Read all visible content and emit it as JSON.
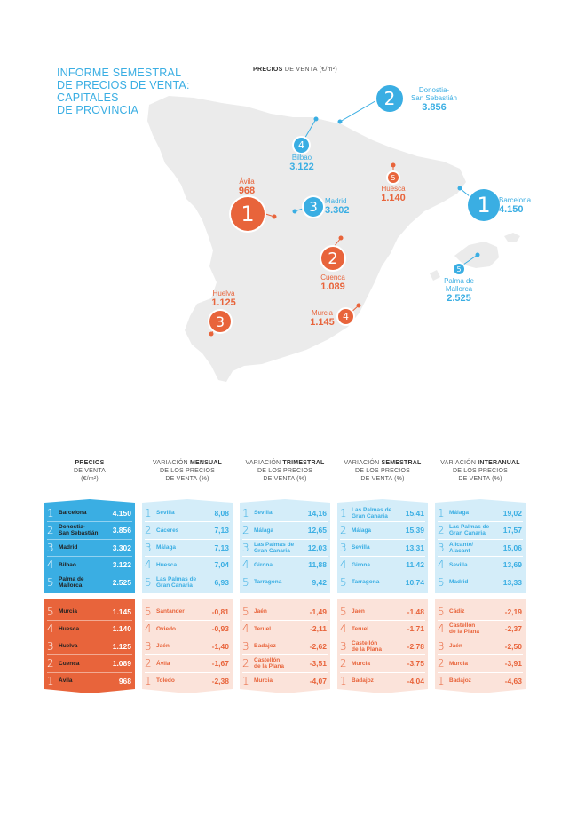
{
  "title": [
    "INFORME SEMESTRAL",
    "DE PRECIOS DE VENTA:",
    "CAPITALES",
    "DE PROVINCIA"
  ],
  "map_header": {
    "bold": "PRECIOS",
    "rest": " DE VENTA (€/m²)"
  },
  "colors": {
    "blue": "#3aaee3",
    "orange": "#e8643b",
    "light_blue": "#d4edf9",
    "light_orange": "#fbe3da",
    "land": "#ebebeb"
  },
  "map_pins": [
    {
      "rank": "2",
      "name": "Donostia-\nSan Sebastián",
      "value": "3.856",
      "color": "blue"
    },
    {
      "rank": "4",
      "name": "Bilbao",
      "value": "3.122",
      "color": "blue"
    },
    {
      "rank": "5",
      "name": "Huesca",
      "value": "1.140",
      "color": "orange"
    },
    {
      "rank": "1",
      "name": "Barcelona",
      "value": "4.150",
      "color": "blue"
    },
    {
      "rank": "1",
      "name": "Ávila",
      "value": "968",
      "color": "orange"
    },
    {
      "rank": "3",
      "name": "Madrid",
      "value": "3.302",
      "color": "blue"
    },
    {
      "rank": "2",
      "name": "Cuenca",
      "value": "1.089",
      "color": "orange"
    },
    {
      "rank": "5",
      "name": "Palma de\nMallorca",
      "value": "2.525",
      "color": "blue"
    },
    {
      "rank": "3",
      "name": "Huelva",
      "value": "1.125",
      "color": "orange"
    },
    {
      "rank": "4",
      "name": "Murcia",
      "value": "1.145",
      "color": "orange"
    }
  ],
  "columns": [
    {
      "head": [
        "PRECIOS",
        "DE VENTA",
        "(€/m²)"
      ],
      "head_bold_word": "PRECIOS",
      "head_bold_line": 0,
      "top": [
        {
          "rank": "1",
          "city": [
            "Barcelona"
          ],
          "value": "4.150"
        },
        {
          "rank": "2",
          "city": [
            "Donostia-",
            "San Sebastián"
          ],
          "value": "3.856"
        },
        {
          "rank": "3",
          "city": [
            "Madrid"
          ],
          "value": "3.302"
        },
        {
          "rank": "4",
          "city": [
            "Bilbao"
          ],
          "value": "3.122"
        },
        {
          "rank": "5",
          "city": [
            "Palma de",
            "Mallorca"
          ],
          "value": "2.525"
        }
      ],
      "bottom": [
        {
          "rank": "5",
          "city": [
            "Murcia"
          ],
          "value": "1.145"
        },
        {
          "rank": "4",
          "city": [
            "Huesca"
          ],
          "value": "1.140"
        },
        {
          "rank": "3",
          "city": [
            "Huelva"
          ],
          "value": "1.125"
        },
        {
          "rank": "2",
          "city": [
            "Cuenca"
          ],
          "value": "1.089"
        },
        {
          "rank": "1",
          "city": [
            "Ávila"
          ],
          "value": "968"
        }
      ]
    },
    {
      "head": [
        "VARIACIÓN MENSUAL",
        "DE LOS PRECIOS",
        "DE VENTA (%)"
      ],
      "head_bold_word": "MENSUAL",
      "head_bold_line": 0,
      "top": [
        {
          "rank": "1",
          "city": [
            "Sevilla"
          ],
          "value": "8,08"
        },
        {
          "rank": "2",
          "city": [
            "Cáceres"
          ],
          "value": "7,13"
        },
        {
          "rank": "3",
          "city": [
            "Málaga"
          ],
          "value": "7,13"
        },
        {
          "rank": "4",
          "city": [
            "Huesca"
          ],
          "value": "7,04"
        },
        {
          "rank": "5",
          "city": [
            "Las Palmas de",
            "Gran Canaria"
          ],
          "value": "6,93"
        }
      ],
      "bottom": [
        {
          "rank": "5",
          "city": [
            "Santander"
          ],
          "value": "-0,81"
        },
        {
          "rank": "4",
          "city": [
            "Oviedo"
          ],
          "value": "-0,93"
        },
        {
          "rank": "3",
          "city": [
            "Jaén"
          ],
          "value": "-1,40"
        },
        {
          "rank": "2",
          "city": [
            "Ávila"
          ],
          "value": "-1,67"
        },
        {
          "rank": "1",
          "city": [
            "Toledo"
          ],
          "value": "-2,38"
        }
      ]
    },
    {
      "head": [
        "VARIACIÓN TRIMESTRAL",
        "DE LOS PRECIOS",
        "DE VENTA (%)"
      ],
      "head_bold_word": "TRIMESTRAL",
      "head_bold_line": 0,
      "top": [
        {
          "rank": "1",
          "city": [
            "Sevilla"
          ],
          "value": "14,16"
        },
        {
          "rank": "2",
          "city": [
            "Málaga"
          ],
          "value": "12,65"
        },
        {
          "rank": "3",
          "city": [
            "Las Palmas de",
            "Gran Canaria"
          ],
          "value": "12,03"
        },
        {
          "rank": "4",
          "city": [
            "Girona"
          ],
          "value": "11,88"
        },
        {
          "rank": "5",
          "city": [
            "Tarragona"
          ],
          "value": "9,42"
        }
      ],
      "bottom": [
        {
          "rank": "5",
          "city": [
            "Jaén"
          ],
          "value": "-1,49"
        },
        {
          "rank": "4",
          "city": [
            "Teruel"
          ],
          "value": "-2,11"
        },
        {
          "rank": "3",
          "city": [
            "Badajoz"
          ],
          "value": "-2,62"
        },
        {
          "rank": "2",
          "city": [
            "Castellón",
            "de la Plana"
          ],
          "value": "-3,51"
        },
        {
          "rank": "1",
          "city": [
            "Murcia"
          ],
          "value": "-4,07"
        }
      ]
    },
    {
      "head": [
        "VARIACIÓN SEMESTRAL",
        "DE LOS PRECIOS",
        "DE VENTA (%)"
      ],
      "head_bold_word": "SEMESTRAL",
      "head_bold_line": 0,
      "top": [
        {
          "rank": "1",
          "city": [
            "Las Palmas de",
            "Gran Canaria"
          ],
          "value": "15,41"
        },
        {
          "rank": "2",
          "city": [
            "Málaga"
          ],
          "value": "15,39"
        },
        {
          "rank": "3",
          "city": [
            "Sevilla"
          ],
          "value": "13,31"
        },
        {
          "rank": "4",
          "city": [
            "Girona"
          ],
          "value": "11,42"
        },
        {
          "rank": "5",
          "city": [
            "Tarragona"
          ],
          "value": "10,74"
        }
      ],
      "bottom": [
        {
          "rank": "5",
          "city": [
            "Jaén"
          ],
          "value": "-1,48"
        },
        {
          "rank": "4",
          "city": [
            "Teruel"
          ],
          "value": "-1,71"
        },
        {
          "rank": "3",
          "city": [
            "Castellón",
            "de la Plana"
          ],
          "value": "-2,78"
        },
        {
          "rank": "2",
          "city": [
            "Murcia"
          ],
          "value": "-3,75"
        },
        {
          "rank": "1",
          "city": [
            "Badajoz"
          ],
          "value": "-4,04"
        }
      ]
    },
    {
      "head": [
        "VARIACIÓN INTERANUAL",
        "DE LOS PRECIOS",
        "DE VENTA (%)"
      ],
      "head_bold_word": "INTERANUAL",
      "head_bold_line": 0,
      "top": [
        {
          "rank": "1",
          "city": [
            "Málaga"
          ],
          "value": "19,02"
        },
        {
          "rank": "2",
          "city": [
            "Las Palmas de",
            "Gran Canaria"
          ],
          "value": "17,57"
        },
        {
          "rank": "3",
          "city": [
            "Alicante/",
            "Alacant"
          ],
          "value": "15,06"
        },
        {
          "rank": "4",
          "city": [
            "Sevilla"
          ],
          "value": "13,69"
        },
        {
          "rank": "5",
          "city": [
            "Madrid"
          ],
          "value": "13,33"
        }
      ],
      "bottom": [
        {
          "rank": "5",
          "city": [
            "Cádiz"
          ],
          "value": "-2,19"
        },
        {
          "rank": "4",
          "city": [
            "Castellón",
            "de la Plana"
          ],
          "value": "-2,37"
        },
        {
          "rank": "3",
          "city": [
            "Jaén"
          ],
          "value": "-2,50"
        },
        {
          "rank": "2",
          "city": [
            "Murcia"
          ],
          "value": "-3,91"
        },
        {
          "rank": "1",
          "city": [
            "Badajoz"
          ],
          "value": "-4,63"
        }
      ]
    }
  ]
}
